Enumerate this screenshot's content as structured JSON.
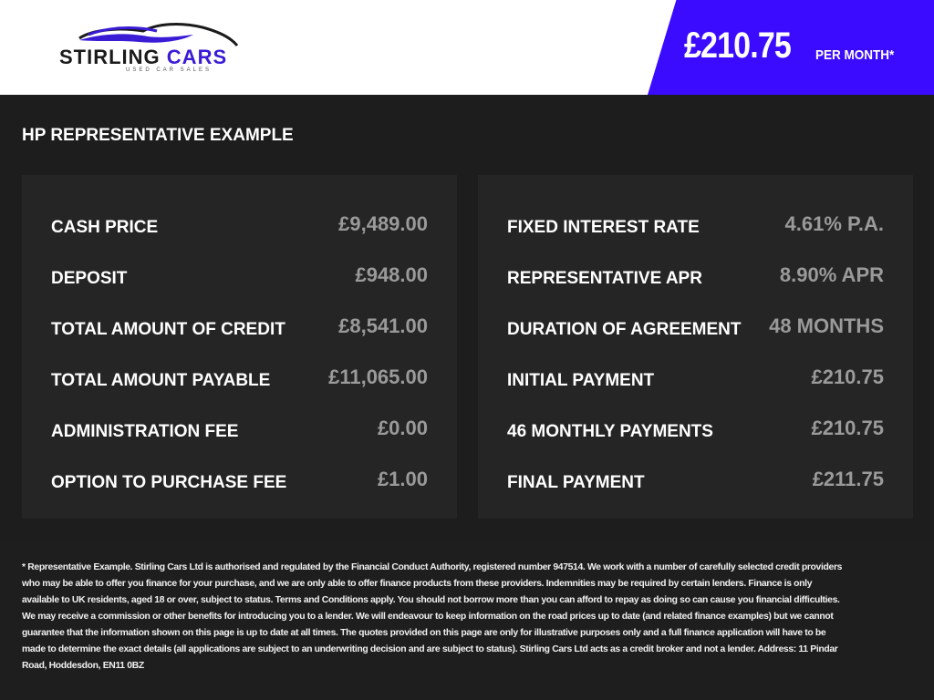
{
  "header": {
    "brand": {
      "name_part1": "STIRLING",
      "name_part2": "CARS",
      "tagline": "USED CAR SALES"
    },
    "price": "£210.75",
    "per_month": "PER MONTH*",
    "accent_color": "#3a0bff"
  },
  "section": {
    "title": "HP REPRESENTATIVE EXAMPLE",
    "left": [
      {
        "label": "CASH PRICE",
        "value": "£9,489.00"
      },
      {
        "label": "DEPOSIT",
        "value": "£948.00"
      },
      {
        "label": "TOTAL AMOUNT OF CREDIT",
        "value": "£8,541.00"
      },
      {
        "label": "TOTAL AMOUNT PAYABLE",
        "value": "£11,065.00"
      },
      {
        "label": "ADMINISTRATION FEE",
        "value": "£0.00"
      },
      {
        "label": "OPTION TO PURCHASE FEE",
        "value": "£1.00"
      }
    ],
    "right": [
      {
        "label": "FIXED INTEREST RATE",
        "value": "4.61% P.A."
      },
      {
        "label": "REPRESENTATIVE APR",
        "value": "8.90% APR"
      },
      {
        "label": "DURATION OF AGREEMENT",
        "value": "48 MONTHS"
      },
      {
        "label": "INITIAL PAYMENT",
        "value": "£210.75"
      },
      {
        "label": "46 MONTHLY PAYMENTS",
        "value": "£210.75"
      },
      {
        "label": "FINAL PAYMENT",
        "value": "£211.75"
      }
    ]
  },
  "disclaimer": "* Representative Example. Stirling Cars Ltd is authorised and regulated by the Financial Conduct Authority, registered number 947514. We work with a number of carefully selected credit providers who may be able to offer you finance for your purchase, and we are only able to offer finance products from these providers. Indemnities may be required by certain lenders. Finance is only available to UK residents, aged 18 or over, subject to status. Terms and Conditions apply. You should not borrow more than you can afford to repay as doing so can cause you financial difficulties. We may receive a commission or other benefits for introducing you to a lender. We will endeavour to keep information on the road prices up to date (and related finance examples) but we cannot guarantee that the information shown on this page is up to date at all times. The quotes provided on this page are only for illustrative purposes only and a full finance application will have to be made to determine the exact details (all applications are subject to an underwriting decision and are subject to status). Stirling Cars Ltd acts as a credit broker and not a lender. Address: 11 Pindar Road, Hoddesdon, EN11 0BZ"
}
